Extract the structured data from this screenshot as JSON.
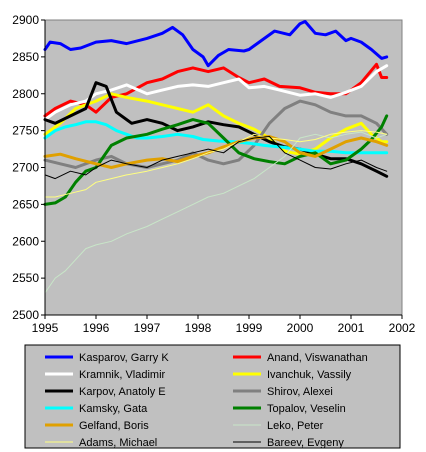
{
  "chart_data": {
    "type": "line",
    "title": "",
    "xlabel": "",
    "ylabel": "",
    "xlim": [
      1995,
      2002
    ],
    "ylim": [
      2500,
      2900
    ],
    "x_ticks": [
      "1995",
      "1996",
      "1997",
      "1998",
      "1999",
      "2000",
      "2001",
      "2002"
    ],
    "y_ticks": [
      "2500",
      "2550",
      "2600",
      "2650",
      "2700",
      "2750",
      "2800",
      "2850",
      "2900"
    ],
    "grid": false,
    "plot_background": "#c0c0c0",
    "legend_placement": "bottom",
    "series": [
      {
        "name": "Kasparov, Garry K",
        "color": "#0000ff",
        "x": [
          1995,
          1995.1,
          1995.3,
          1995.5,
          1995.7,
          1996,
          1996.3,
          1996.6,
          1997,
          1997.3,
          1997.5,
          1997.7,
          1997.9,
          1998.1,
          1998.2,
          1998.4,
          1998.6,
          1998.9,
          1999,
          1999.2,
          1999.5,
          1999.8,
          2000,
          2000.1,
          2000.3,
          2000.5,
          2000.7,
          2000.9,
          2001,
          2001.2,
          2001.4,
          2001.6,
          2001.7
        ],
        "y": [
          2860,
          2870,
          2868,
          2860,
          2862,
          2870,
          2872,
          2868,
          2875,
          2882,
          2890,
          2880,
          2860,
          2850,
          2838,
          2852,
          2860,
          2858,
          2860,
          2870,
          2885,
          2880,
          2895,
          2898,
          2882,
          2880,
          2885,
          2872,
          2875,
          2870,
          2860,
          2848,
          2850
        ]
      },
      {
        "name": "Anand, Viswanathan",
        "color": "#ff0000",
        "x": [
          1995,
          1995.2,
          1995.5,
          1995.8,
          1996,
          1996.3,
          1996.6,
          1997,
          1997.3,
          1997.6,
          1997.9,
          1998.2,
          1998.5,
          1998.8,
          1999,
          1999.3,
          1999.6,
          2000,
          2000.3,
          2000.6,
          2000.9,
          2001.2,
          2001.5,
          2001.6,
          2001.7
        ],
        "y": [
          2770,
          2780,
          2790,
          2785,
          2775,
          2795,
          2800,
          2815,
          2820,
          2830,
          2835,
          2830,
          2835,
          2822,
          2815,
          2820,
          2810,
          2808,
          2802,
          2800,
          2800,
          2815,
          2840,
          2822,
          2822
        ]
      },
      {
        "name": "Kramnik, Vladimir",
        "color": "#ffffff",
        "x": [
          1995,
          1995.2,
          1995.5,
          1995.8,
          1996,
          1996.3,
          1996.6,
          1997,
          1997.3,
          1997.6,
          1997.9,
          1998.2,
          1998.5,
          1998.8,
          1999,
          1999.3,
          1999.6,
          2000,
          2000.3,
          2000.6,
          2000.9,
          2001.2,
          2001.5,
          2001.7
        ],
        "y": [
          2765,
          2775,
          2785,
          2790,
          2800,
          2805,
          2812,
          2800,
          2805,
          2810,
          2812,
          2810,
          2815,
          2820,
          2808,
          2810,
          2805,
          2798,
          2800,
          2795,
          2802,
          2810,
          2830,
          2838
        ]
      },
      {
        "name": "Ivanchuk, Vassily",
        "color": "#ffff00",
        "x": [
          1995,
          1995.3,
          1995.6,
          1996,
          1996.3,
          1996.6,
          1997,
          1997.3,
          1997.6,
          1997.9,
          1998.2,
          1998.5,
          1998.8,
          1999.1,
          1999.4,
          1999.7,
          2000,
          2000.3,
          2000.6,
          2000.9,
          2001.2,
          2001.4,
          2001.6,
          2001.7
        ],
        "y": [
          2745,
          2760,
          2780,
          2790,
          2800,
          2795,
          2790,
          2785,
          2780,
          2775,
          2785,
          2770,
          2760,
          2752,
          2740,
          2722,
          2718,
          2725,
          2740,
          2752,
          2760,
          2745,
          2735,
          2735
        ]
      },
      {
        "name": "Karpov, Anatoly E",
        "color": "#000000",
        "x": [
          1995,
          1995.2,
          1995.5,
          1995.8,
          1996,
          1996.2,
          1996.4,
          1996.7,
          1997,
          1997.3,
          1997.6,
          1997.9,
          1998.2,
          1998.5,
          1998.8,
          1999.1,
          1999.4,
          1999.7,
          2000,
          2000.3,
          2000.6,
          2000.9,
          2001.2,
          2001.5,
          2001.7
        ],
        "y": [
          2765,
          2760,
          2770,
          2780,
          2815,
          2810,
          2775,
          2760,
          2765,
          2760,
          2750,
          2755,
          2762,
          2758,
          2755,
          2745,
          2735,
          2728,
          2725,
          2718,
          2712,
          2712,
          2705,
          2695,
          2688
        ]
      },
      {
        "name": "Shirov, Alexei",
        "color": "#808080",
        "x": [
          1995,
          1995.3,
          1995.6,
          1996,
          1996.3,
          1996.6,
          1997,
          1997.3,
          1997.6,
          1997.9,
          1998.2,
          1998.5,
          1998.8,
          1999.1,
          1999.4,
          1999.7,
          2000,
          2000.3,
          2000.6,
          2000.9,
          2001.2,
          2001.5,
          2001.7
        ],
        "y": [
          2710,
          2705,
          2700,
          2710,
          2715,
          2705,
          2700,
          2705,
          2710,
          2720,
          2710,
          2705,
          2710,
          2730,
          2760,
          2780,
          2790,
          2785,
          2775,
          2770,
          2770,
          2760,
          2745
        ]
      },
      {
        "name": "Kamsky, Gata",
        "color": "#00ffff",
        "x": [
          1995,
          1995.2,
          1995.4,
          1995.6,
          1995.8,
          1996,
          1996.2,
          1996.4,
          1996.6,
          1996.8,
          1997,
          1997.3,
          1997.6,
          1997.9,
          1998.1,
          1998.4,
          1998.7,
          1999,
          1999.3,
          1999.6,
          2000,
          2000.3,
          2000.6,
          2000.9,
          2001.2,
          2001.5,
          2001.7
        ],
        "y": [
          2740,
          2750,
          2755,
          2758,
          2762,
          2762,
          2758,
          2750,
          2745,
          2740,
          2740,
          2742,
          2745,
          2742,
          2738,
          2736,
          2735,
          2733,
          2730,
          2728,
          2725,
          2722,
          2722,
          2720,
          2720,
          2720,
          2720
        ]
      },
      {
        "name": "Topalov, Veselin",
        "color": "#008000",
        "x": [
          1995,
          1995.2,
          1995.4,
          1995.6,
          1995.8,
          1996,
          1996.3,
          1996.6,
          1997,
          1997.3,
          1997.6,
          1997.9,
          1998.2,
          1998.5,
          1998.8,
          1999.1,
          1999.4,
          1999.7,
          2000,
          2000.3,
          2000.6,
          2000.9,
          2001.2,
          2001.4,
          2001.6,
          2001.7
        ],
        "y": [
          2650,
          2652,
          2660,
          2680,
          2695,
          2700,
          2730,
          2740,
          2745,
          2752,
          2758,
          2765,
          2760,
          2740,
          2720,
          2712,
          2708,
          2705,
          2715,
          2720,
          2705,
          2710,
          2725,
          2738,
          2755,
          2770
        ]
      },
      {
        "name": "Gelfand, Boris",
        "color": "#e0a000",
        "x": [
          1995,
          1995.3,
          1995.6,
          1996,
          1996.3,
          1996.6,
          1997,
          1997.3,
          1997.6,
          1997.9,
          1998.2,
          1998.5,
          1998.8,
          1999.1,
          1999.4,
          1999.7,
          2000,
          2000.3,
          2000.6,
          2000.9,
          2001.2,
          2001.5,
          2001.7
        ],
        "y": [
          2715,
          2718,
          2712,
          2705,
          2700,
          2705,
          2710,
          2712,
          2708,
          2715,
          2720,
          2728,
          2735,
          2740,
          2742,
          2735,
          2720,
          2715,
          2725,
          2735,
          2740,
          2735,
          2730
        ]
      },
      {
        "name": "Leko, Peter",
        "color": "#c8e6c8",
        "x": [
          1995,
          1995.2,
          1995.4,
          1995.6,
          1995.8,
          1996,
          1996.3,
          1996.6,
          1997,
          1997.3,
          1997.6,
          1997.9,
          1998.2,
          1998.5,
          1998.8,
          1999.1,
          1999.4,
          1999.7,
          2000,
          2000.3,
          2000.6,
          2000.9,
          2001.2,
          2001.5,
          2001.7
        ],
        "y": [
          2530,
          2550,
          2560,
          2575,
          2590,
          2595,
          2600,
          2610,
          2620,
          2630,
          2640,
          2650,
          2660,
          2665,
          2675,
          2685,
          2700,
          2715,
          2740,
          2745,
          2740,
          2745,
          2748,
          2740,
          2745
        ]
      },
      {
        "name": "Adams, Michael",
        "color": "#ffff80",
        "x": [
          1995,
          1995.2,
          1995.5,
          1995.8,
          1996,
          1996.3,
          1996.6,
          1997,
          1997.3,
          1997.6,
          1997.9,
          1998.2,
          1998.5,
          1998.8,
          1999.1,
          1999.4,
          1999.7,
          2000,
          2000.3,
          2000.6,
          2000.9,
          2001.2,
          2001.5,
          2001.7
        ],
        "y": [
          2660,
          2660,
          2665,
          2670,
          2680,
          2685,
          2690,
          2695,
          2700,
          2705,
          2712,
          2720,
          2725,
          2735,
          2745,
          2740,
          2738,
          2735,
          2738,
          2745,
          2748,
          2750,
          2748,
          2745
        ]
      },
      {
        "name": "Bareev, Evgeny",
        "color": "#000000",
        "x": [
          1995,
          1995.2,
          1995.5,
          1995.8,
          1996,
          1996.3,
          1996.6,
          1997,
          1997.3,
          1997.6,
          1997.9,
          1998.2,
          1998.5,
          1998.8,
          1999.1,
          1999.4,
          1999.7,
          2000,
          2000.3,
          2000.6,
          2000.9,
          2001.2,
          2001.5,
          2001.7
        ],
        "y": [
          2690,
          2685,
          2695,
          2690,
          2700,
          2710,
          2705,
          2700,
          2710,
          2715,
          2720,
          2725,
          2720,
          2735,
          2740,
          2742,
          2720,
          2710,
          2700,
          2698,
          2705,
          2710,
          2700,
          2695
        ]
      }
    ]
  }
}
